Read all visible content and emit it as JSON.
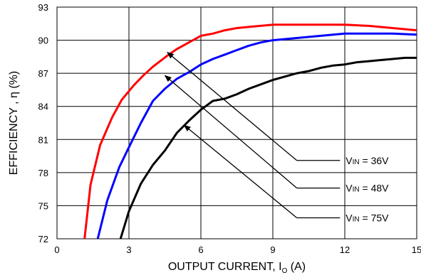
{
  "chart_data": {
    "type": "line",
    "xlabel": "OUTPUT CURRENT, I",
    "xlabel_sub": "O",
    "xlabel_unit": " (A)",
    "ylabel": "EFFICIENCY , η (%)",
    "xlim": [
      0,
      15
    ],
    "ylim": [
      72,
      93
    ],
    "xticks": [
      0,
      3,
      6,
      9,
      12,
      15
    ],
    "yticks": [
      72,
      75,
      78,
      81,
      84,
      87,
      90,
      93
    ],
    "grid": true,
    "series": [
      {
        "name": "VIN = 36V",
        "label_main": "V",
        "label_sub": "IN",
        "label_rest": " = 36V",
        "color": "#ff0000",
        "points": [
          [
            1.15,
            72.0
          ],
          [
            1.4,
            76.9
          ],
          [
            1.8,
            80.5
          ],
          [
            2.3,
            83.0
          ],
          [
            2.7,
            84.6
          ],
          [
            3.2,
            85.9
          ],
          [
            3.6,
            86.8
          ],
          [
            4.0,
            87.6
          ],
          [
            4.6,
            88.6
          ],
          [
            5.0,
            89.2
          ],
          [
            5.5,
            89.8
          ],
          [
            6.0,
            90.4
          ],
          [
            6.5,
            90.6
          ],
          [
            7.0,
            90.9
          ],
          [
            7.5,
            91.1
          ],
          [
            8.0,
            91.2
          ],
          [
            9.0,
            91.4
          ],
          [
            10.0,
            91.4
          ],
          [
            11.0,
            91.4
          ],
          [
            12.0,
            91.4
          ],
          [
            13.0,
            91.3
          ],
          [
            14.0,
            91.1
          ],
          [
            15.0,
            90.9
          ]
        ]
      },
      {
        "name": "VIN = 48V",
        "label_main": "V",
        "label_sub": "IN",
        "label_rest": " = 48V",
        "color": "#0000ff",
        "points": [
          [
            1.7,
            72.0
          ],
          [
            2.1,
            75.5
          ],
          [
            2.6,
            78.5
          ],
          [
            3.0,
            80.3
          ],
          [
            3.5,
            82.5
          ],
          [
            4.0,
            84.5
          ],
          [
            4.5,
            85.6
          ],
          [
            5.0,
            86.5
          ],
          [
            5.5,
            87.1
          ],
          [
            6.0,
            87.8
          ],
          [
            6.5,
            88.3
          ],
          [
            7.0,
            88.7
          ],
          [
            7.5,
            89.1
          ],
          [
            8.0,
            89.5
          ],
          [
            8.5,
            89.8
          ],
          [
            9.0,
            90.0
          ],
          [
            10.0,
            90.2
          ],
          [
            11.0,
            90.4
          ],
          [
            12.0,
            90.6
          ],
          [
            13.0,
            90.6
          ],
          [
            14.0,
            90.6
          ],
          [
            15.0,
            90.5
          ]
        ]
      },
      {
        "name": "VIN = 75V",
        "label_main": "V",
        "label_sub": "IN",
        "label_rest": " = 75V",
        "color": "#000000",
        "points": [
          [
            2.65,
            72.0
          ],
          [
            3.0,
            74.5
          ],
          [
            3.5,
            77.0
          ],
          [
            4.0,
            78.7
          ],
          [
            4.5,
            80.0
          ],
          [
            5.0,
            81.6
          ],
          [
            5.5,
            82.7
          ],
          [
            6.0,
            83.7
          ],
          [
            6.5,
            84.5
          ],
          [
            7.0,
            84.7
          ],
          [
            7.5,
            85.1
          ],
          [
            8.0,
            85.6
          ],
          [
            8.5,
            86.0
          ],
          [
            9.0,
            86.4
          ],
          [
            9.5,
            86.7
          ],
          [
            10.0,
            87.0
          ],
          [
            10.5,
            87.2
          ],
          [
            11.0,
            87.5
          ],
          [
            11.5,
            87.7
          ],
          [
            12.0,
            87.8
          ],
          [
            12.5,
            88.0
          ],
          [
            13.0,
            88.1
          ],
          [
            13.5,
            88.2
          ],
          [
            14.0,
            88.3
          ],
          [
            14.5,
            88.4
          ],
          [
            15.0,
            88.4
          ]
        ]
      }
    ],
    "annotations": [
      {
        "series": 0,
        "tip": [
          4.6,
          88.9
        ],
        "elbow": [
          10.0,
          79.1
        ],
        "end": [
          11.8,
          79.1
        ]
      },
      {
        "series": 1,
        "tip": [
          4.5,
          86.8
        ],
        "elbow": [
          10.0,
          76.6
        ],
        "end": [
          11.8,
          76.6
        ]
      },
      {
        "series": 2,
        "tip": [
          5.3,
          82.3
        ],
        "elbow": [
          10.0,
          73.9
        ],
        "end": [
          11.8,
          73.9
        ]
      }
    ]
  }
}
